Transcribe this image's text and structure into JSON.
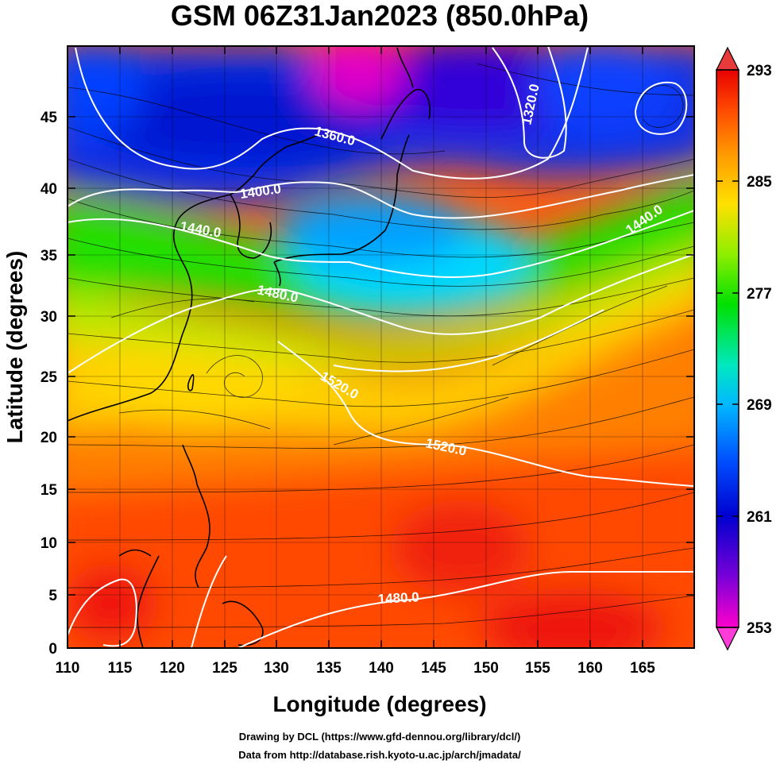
{
  "title": "GSM 06Z31Jan2023 (850.0hPa)",
  "xlabel": "Longitude (degrees)",
  "ylabel": "Latitude  (degrees)",
  "x_ticks": [
    "110",
    "115",
    "120",
    "125",
    "130",
    "135",
    "140",
    "145",
    "150",
    "155",
    "160",
    "165"
  ],
  "y_ticks": [
    "0",
    "5",
    "10",
    "15",
    "20",
    "25",
    "30",
    "35",
    "40",
    "45"
  ],
  "colorbar_ticks": [
    "293",
    "285",
    "277",
    "269",
    "261",
    "253"
  ],
  "contour_labels": [
    "1360.0",
    "1320.0",
    "1400.0",
    "1440.0",
    "1440.0",
    "1480.0",
    "1520.0",
    "1520.0",
    "1480.0"
  ],
  "credits": {
    "line1": "Drawing by DCL (https://www.gfd-dennou.org/library/dcl/)",
    "line2": "Data from http://database.rish.kyoto-u.ac.jp/arch/jmadata/"
  },
  "chart_data": {
    "type": "heatmap",
    "variable": "temperature (K) shaded, geopotential height contours (m), wind streamlines",
    "xlim": [
      110,
      170
    ],
    "ylim": [
      0,
      50
    ],
    "clim": [
      253,
      293
    ],
    "colorbar_ticks": [
      253,
      261,
      269,
      277,
      285,
      293
    ],
    "colormap": [
      "#ff00cc",
      "#7a00d8",
      "#0000d0",
      "#0050ff",
      "#00b8ff",
      "#00e8c0",
      "#00e000",
      "#90ee00",
      "#ffe000",
      "#ff9800",
      "#ff4800",
      "#e80000"
    ],
    "contours": [
      {
        "label": "1320.0",
        "value": 1320
      },
      {
        "label": "1360.0",
        "value": 1360
      },
      {
        "label": "1400.0",
        "value": 1400
      },
      {
        "label": "1440.0",
        "value": 1440
      },
      {
        "label": "1480.0",
        "value": 1480
      },
      {
        "label": "1520.0",
        "value": 1520
      }
    ]
  }
}
